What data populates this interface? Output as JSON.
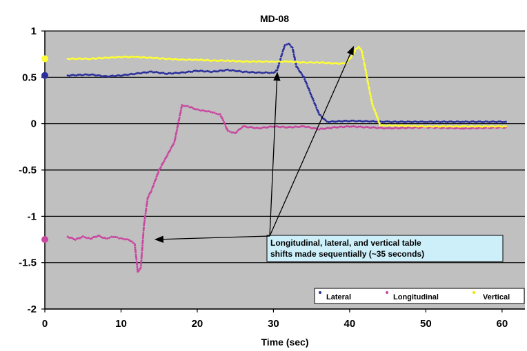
{
  "chart_data": {
    "type": "scatter",
    "title": "MD-08",
    "xlabel": "Time (sec)",
    "ylabel": "",
    "xlim": [
      0,
      63
    ],
    "ylim": [
      -2,
      1
    ],
    "x_ticks": [
      "0",
      "10",
      "20",
      "30",
      "40",
      "50",
      "60"
    ],
    "y_ticks": [
      "1",
      "0.5",
      "0",
      "-0.5",
      "-1",
      "-1.5",
      "-2"
    ],
    "x_tick_values": [
      0,
      10,
      20,
      30,
      40,
      50,
      60
    ],
    "y_tick_values": [
      1,
      0.5,
      0,
      -0.5,
      -1,
      -1.5,
      -2
    ],
    "grid": true,
    "legend_position": "bottom-right",
    "plot_background": "#c0c0c0",
    "series": [
      {
        "name": "Lateral",
        "color": "#2b2f9a",
        "start_point": [
          0,
          0.52
        ],
        "x": [
          3,
          6,
          8,
          10,
          12,
          14,
          16,
          18,
          20,
          22,
          24,
          26,
          28,
          30,
          30.5,
          31,
          31.5,
          32,
          32.5,
          33,
          34,
          35,
          36,
          37,
          40,
          45,
          50,
          55,
          60.5
        ],
        "y": [
          0.52,
          0.53,
          0.51,
          0.52,
          0.54,
          0.56,
          0.54,
          0.55,
          0.57,
          0.56,
          0.58,
          0.56,
          0.55,
          0.55,
          0.58,
          0.72,
          0.85,
          0.86,
          0.82,
          0.62,
          0.5,
          0.3,
          0.1,
          0.02,
          0.03,
          0.02,
          0.02,
          0.02,
          0.02
        ]
      },
      {
        "name": "Longitudinal",
        "color": "#c8479f",
        "start_point": [
          0,
          -1.25
        ],
        "x": [
          3,
          4,
          5,
          6,
          7,
          8,
          9,
          10,
          11,
          11.8,
          12.2,
          12.6,
          13.0,
          13.5,
          14,
          15,
          16,
          17,
          18,
          19,
          20,
          21,
          22,
          23,
          23.5,
          24,
          25,
          26,
          28,
          30,
          32,
          34,
          36,
          38,
          40,
          45,
          50,
          55,
          60.5
        ],
        "y": [
          -1.22,
          -1.25,
          -1.22,
          -1.24,
          -1.21,
          -1.24,
          -1.22,
          -1.24,
          -1.25,
          -1.3,
          -1.6,
          -1.55,
          -1.1,
          -0.8,
          -0.72,
          -0.5,
          -0.35,
          -0.2,
          0.2,
          0.18,
          0.15,
          0.14,
          0.12,
          0.1,
          0.02,
          -0.08,
          -0.1,
          -0.03,
          -0.05,
          -0.03,
          -0.04,
          -0.03,
          -0.06,
          -0.04,
          -0.03,
          -0.05,
          -0.04,
          -0.05,
          -0.04
        ]
      },
      {
        "name": "Vertical",
        "color": "#ffff33",
        "start_point": [
          0,
          0.7
        ],
        "x": [
          3,
          6,
          8,
          10,
          12,
          14,
          16,
          18,
          20,
          22,
          24,
          26,
          28,
          30,
          32,
          34,
          36,
          38,
          39.5,
          40.2,
          40.8,
          41.2,
          41.6,
          42,
          42.5,
          43,
          43.5,
          44,
          46,
          50,
          55,
          60.5
        ],
        "y": [
          0.7,
          0.7,
          0.71,
          0.72,
          0.72,
          0.71,
          0.7,
          0.69,
          0.69,
          0.68,
          0.68,
          0.67,
          0.67,
          0.67,
          0.67,
          0.66,
          0.66,
          0.65,
          0.65,
          0.72,
          0.8,
          0.83,
          0.78,
          0.62,
          0.4,
          0.2,
          0.1,
          -0.02,
          -0.02,
          -0.03,
          -0.03,
          -0.03
        ]
      }
    ],
    "annotation": {
      "lines": [
        "Longitudinal, lateral, and vertical table",
        "shifts made sequentially (~35 seconds)"
      ],
      "arrow_targets": [
        [
          14.5,
          -1.25
        ],
        [
          30.5,
          0.55
        ],
        [
          40.5,
          0.83
        ]
      ]
    }
  }
}
